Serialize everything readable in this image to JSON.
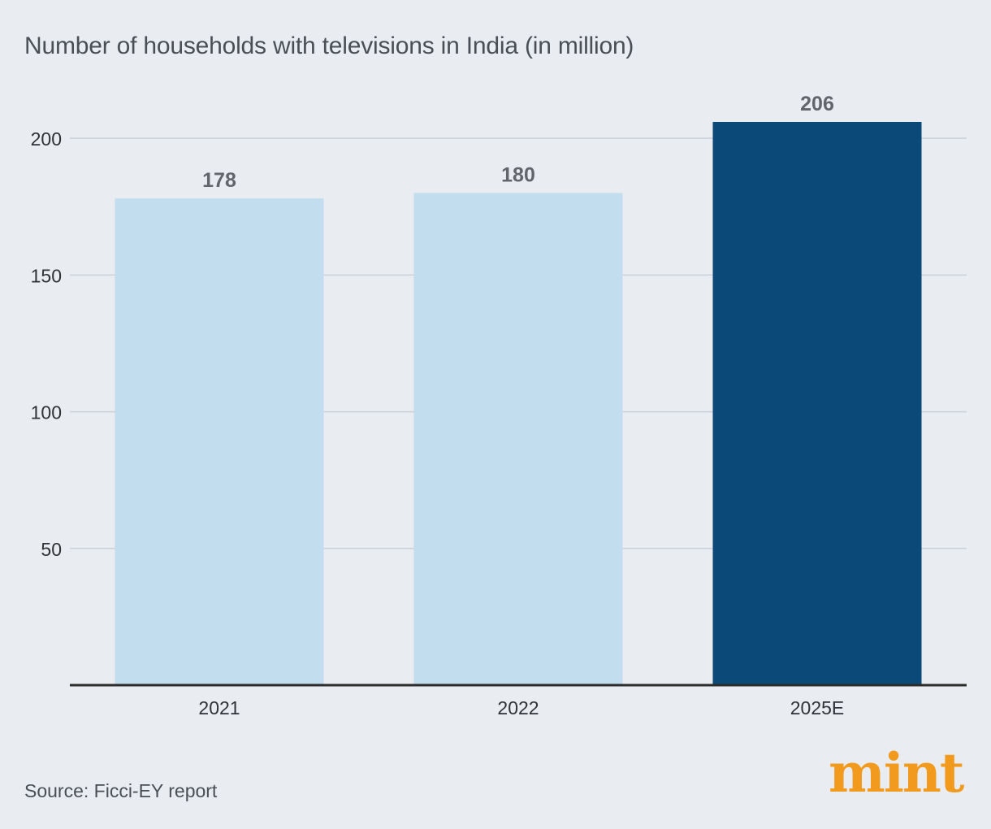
{
  "chart_data": {
    "type": "bar",
    "title": "Number of households with televisions in India (in million)",
    "categories": [
      "2021",
      "2022",
      "2025E"
    ],
    "values": [
      178,
      180,
      206
    ],
    "value_labels": [
      "178",
      "180",
      "206"
    ],
    "colors": [
      "#c2ddee",
      "#c2ddee",
      "#0b4a78"
    ],
    "yticks": [
      50,
      100,
      150,
      200
    ],
    "ylim": [
      0,
      206
    ],
    "xlabel": "",
    "ylabel": "",
    "grid": true
  },
  "footer": {
    "source": "Source: Ficci-EY report",
    "logo": "mint"
  }
}
